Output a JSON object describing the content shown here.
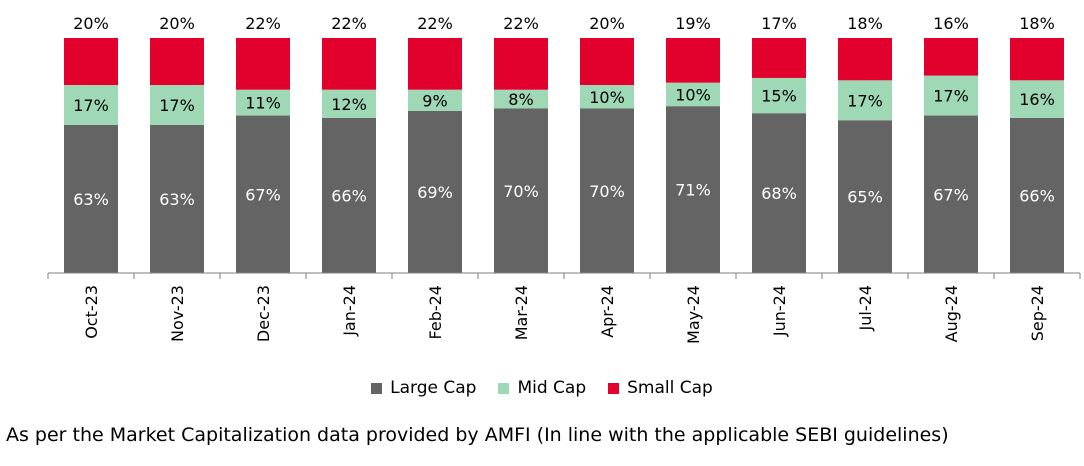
{
  "chart_data": {
    "type": "bar",
    "stacked": true,
    "percent_stacked": true,
    "title": "",
    "xlabel": "",
    "ylabel": "",
    "ylim": [
      0,
      100
    ],
    "grid": false,
    "legend_position": "bottom",
    "categories": [
      "Oct-23",
      "Nov-23",
      "Dec-23",
      "Jan-24",
      "Feb-24",
      "Mar-24",
      "Apr-24",
      "May-24",
      "Jun-24",
      "Jul-24",
      "Aug-24",
      "Sep-24"
    ],
    "series": [
      {
        "name": "Large Cap",
        "color": "#646464",
        "label_color": "#ffffff",
        "values": [
          63,
          63,
          67,
          66,
          69,
          70,
          70,
          71,
          68,
          65,
          67,
          66
        ]
      },
      {
        "name": "Mid Cap",
        "color": "#9fd8b5",
        "label_color": "#000000",
        "values": [
          17,
          17,
          11,
          12,
          9,
          8,
          10,
          10,
          15,
          17,
          17,
          16
        ]
      },
      {
        "name": "Small Cap",
        "color": "#e2002d",
        "label_color": "#000000",
        "values": [
          20,
          20,
          22,
          22,
          22,
          22,
          20,
          19,
          17,
          18,
          16,
          18
        ]
      }
    ],
    "value_suffix": "%"
  },
  "footnote": "As per the Market Capitalization data provided by AMFI (In line with the applicable SEBI guidelines)"
}
